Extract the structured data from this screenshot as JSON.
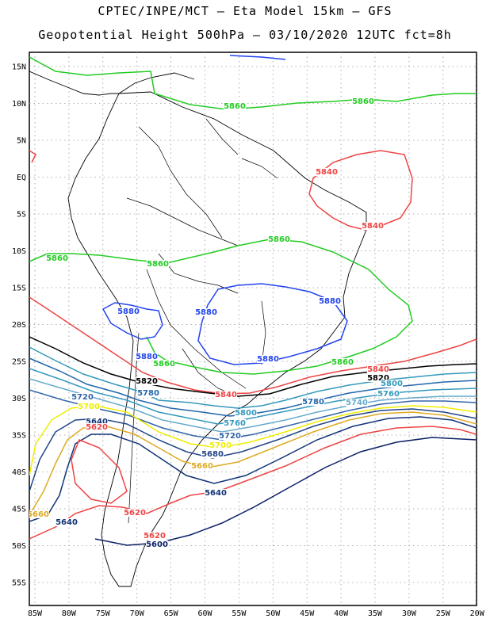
{
  "header": {
    "line1": "CPTEC/INPE/MCT –  Eta Model 15km – GFS",
    "line2": "Geopotential Height 500hPa – 03/10/2020 12UTC fct=8h"
  },
  "axes": {
    "lat_labels": [
      "15N",
      "10N",
      "5N",
      "EQ",
      "5S",
      "10S",
      "15S",
      "20S",
      "25S",
      "30S",
      "35S",
      "40S",
      "45S",
      "50S",
      "55S"
    ],
    "lon_labels": [
      "85W",
      "80W",
      "75W",
      "70W",
      "65W",
      "60W",
      "55W",
      "50W",
      "45W",
      "40W",
      "35W",
      "30W",
      "25W",
      "20W"
    ]
  },
  "colors": {
    "5860": "#22cc22",
    "5880": "#2244ee",
    "5840": "#ee4444",
    "5820": "#000000",
    "5800": "#3399bb",
    "5780": "#2266aa",
    "5760": "#3399bb",
    "5740": "#66aacc",
    "5720": "#3366aa",
    "5700": "#eeee00",
    "5680": "#224488",
    "5660": "#ddaa22",
    "5640": "#113377",
    "5620": "#ee4444",
    "5600": "#0a1f66"
  },
  "contour_labels": [
    {
      "text": "5860",
      "key": "5860"
    },
    {
      "text": "5860",
      "key": "5860"
    },
    {
      "text": "5860",
      "key": "5860"
    },
    {
      "text": "5860",
      "key": "5860"
    },
    {
      "text": "5860",
      "key": "5860"
    },
    {
      "text": "5860",
      "key": "5860"
    },
    {
      "text": "5860",
      "key": "5860"
    },
    {
      "text": "5840",
      "key": "5840"
    },
    {
      "text": "5840",
      "key": "5840"
    },
    {
      "text": "5840",
      "key": "5840"
    },
    {
      "text": "5840",
      "key": "5840"
    },
    {
      "text": "5880",
      "key": "5880"
    },
    {
      "text": "5880",
      "key": "5880"
    },
    {
      "text": "5880",
      "key": "5880"
    },
    {
      "text": "5880",
      "key": "5880"
    },
    {
      "text": "5880",
      "key": "5880"
    },
    {
      "text": "5820",
      "key": "5820"
    },
    {
      "text": "5820",
      "key": "5820"
    },
    {
      "text": "5800",
      "key": "5800"
    },
    {
      "text": "5800",
      "key": "5800"
    },
    {
      "text": "5780",
      "key": "5780"
    },
    {
      "text": "5780",
      "key": "5780"
    },
    {
      "text": "5760",
      "key": "5760"
    },
    {
      "text": "5760",
      "key": "5760"
    },
    {
      "text": "5740",
      "key": "5740"
    },
    {
      "text": "5720",
      "key": "5720"
    },
    {
      "text": "5720",
      "key": "5720"
    },
    {
      "text": "5700",
      "key": "5700"
    },
    {
      "text": "5700",
      "key": "5700"
    },
    {
      "text": "5680",
      "key": "5680"
    },
    {
      "text": "5660",
      "key": "5660"
    },
    {
      "text": "5660",
      "key": "5660"
    },
    {
      "text": "5640",
      "key": "5640"
    },
    {
      "text": "5640",
      "key": "5640"
    },
    {
      "text": "5640",
      "key": "5640"
    },
    {
      "text": "5620",
      "key": "5620"
    },
    {
      "text": "5620",
      "key": "5620"
    },
    {
      "text": "5620",
      "key": "5620"
    },
    {
      "text": "5600",
      "key": "5600"
    }
  ]
}
